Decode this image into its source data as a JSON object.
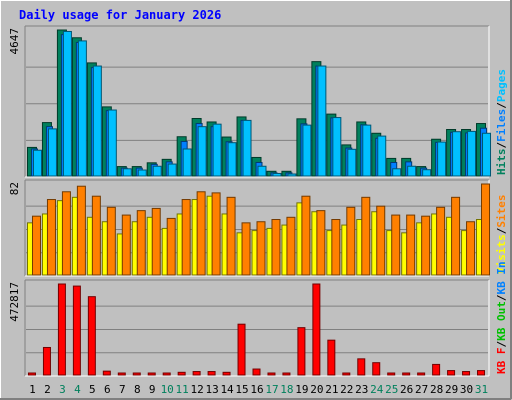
{
  "title": "Daily usage for January 2026",
  "colors": {
    "background": "#c0c0c0",
    "plot": "#c0c0c0",
    "title": "#0000ff",
    "hits": "#00805c",
    "files": "#0080ff",
    "pages": "#00c0ff",
    "visits": "#ffff00",
    "sites": "#ff8000",
    "kbin": "#0080ff",
    "kbout": "#00c000",
    "kbf": "#ff0000",
    "weekend": "#00805c",
    "weekday": "#000000"
  },
  "chart_data": [
    {
      "type": "bar",
      "name": "hits-files-pages",
      "ymax_label": "4647",
      "legend": [
        {
          "label": "Hits",
          "color": "#00805c"
        },
        {
          "label": "Files",
          "color": "#0080ff"
        },
        {
          "label": "Pages",
          "color": "#00c0ff"
        }
      ],
      "categories": [
        "1",
        "2",
        "3",
        "4",
        "5",
        "6",
        "7",
        "8",
        "9",
        "10",
        "11",
        "12",
        "13",
        "14",
        "15",
        "16",
        "17",
        "18",
        "19",
        "20",
        "21",
        "22",
        "23",
        "24",
        "25",
        "26",
        "27",
        "28",
        "29",
        "30",
        "31"
      ],
      "series": [
        {
          "name": "Hits",
          "values": [
            910,
            1700,
            4647,
            4400,
            3600,
            2200,
            300,
            300,
            420,
            530,
            1250,
            1830,
            1720,
            1240,
            1880,
            590,
            150,
            150,
            1820,
            3640,
            1970,
            990,
            1720,
            1360,
            560,
            560,
            300,
            1170,
            1480,
            1480,
            1670
          ]
        },
        {
          "name": "Files",
          "values": [
            860,
            1570,
            4500,
            4250,
            3450,
            2080,
            250,
            250,
            370,
            450,
            1100,
            1670,
            1570,
            1090,
            1770,
            430,
            100,
            100,
            1660,
            3500,
            1850,
            890,
            1630,
            1200,
            430,
            450,
            250,
            1070,
            1390,
            1370,
            1520
          ]
        },
        {
          "name": "Pages",
          "values": [
            820,
            1500,
            4600,
            4300,
            3500,
            2100,
            230,
            190,
            310,
            380,
            860,
            1570,
            1650,
            1060,
            1770,
            310,
            80,
            50,
            1620,
            3500,
            1860,
            850,
            1620,
            1270,
            230,
            310,
            200,
            1080,
            1410,
            1420,
            1360
          ]
        }
      ]
    },
    {
      "type": "bar",
      "name": "visits-sites",
      "ymax_label": "82",
      "legend": [
        {
          "label": "Visits",
          "color": "#ffff00"
        },
        {
          "label": "Sites",
          "color": "#ff8000"
        }
      ],
      "categories": [
        "1",
        "2",
        "3",
        "4",
        "5",
        "6",
        "7",
        "8",
        "9",
        "10",
        "11",
        "12",
        "13",
        "14",
        "15",
        "16",
        "17",
        "18",
        "19",
        "20",
        "21",
        "22",
        "23",
        "24",
        "25",
        "26",
        "27",
        "28",
        "29",
        "30",
        "31"
      ],
      "series": [
        {
          "name": "Visits",
          "values": [
            47,
            55,
            67,
            70,
            52,
            48,
            37,
            48,
            52,
            42,
            55,
            68,
            71,
            55,
            38,
            40,
            42,
            45,
            65,
            57,
            40,
            45,
            50,
            57,
            40,
            38,
            47,
            55,
            52,
            40,
            50
          ]
        },
        {
          "name": "Sites",
          "values": [
            53,
            68,
            75,
            80,
            71,
            61,
            54,
            58,
            60,
            51,
            68,
            75,
            74,
            70,
            47,
            48,
            50,
            52,
            71,
            58,
            50,
            61,
            70,
            62,
            54,
            54,
            53,
            61,
            70,
            48,
            82
          ]
        }
      ]
    },
    {
      "type": "bar",
      "name": "kbytes",
      "ymax_label": "472817",
      "legend": [
        {
          "label": "KB F",
          "color": "#ff0000"
        },
        {
          "label": "KB Out",
          "color": "#00c000"
        },
        {
          "label": "KB In",
          "color": "#0080ff"
        }
      ],
      "categories": [
        "1",
        "2",
        "3",
        "4",
        "5",
        "6",
        "7",
        "8",
        "9",
        "10",
        "11",
        "12",
        "13",
        "14",
        "15",
        "16",
        "17",
        "18",
        "19",
        "20",
        "21",
        "22",
        "23",
        "24",
        "25",
        "26",
        "27",
        "28",
        "29",
        "30",
        "31"
      ],
      "series": [
        {
          "name": "KB F",
          "values": [
            0,
            143000,
            472817,
            462000,
            407000,
            20000,
            9000,
            9000,
            9000,
            9000,
            14000,
            18000,
            18000,
            14000,
            264000,
            31000,
            5000,
            5000,
            246000,
            472817,
            181000,
            5000,
            84000,
            64000,
            9000,
            9000,
            9000,
            55000,
            23000,
            18000,
            23000
          ]
        }
      ]
    }
  ],
  "x_labels": [
    {
      "text": "1",
      "weekend": false
    },
    {
      "text": "2",
      "weekend": false
    },
    {
      "text": "3",
      "weekend": true
    },
    {
      "text": "4",
      "weekend": true
    },
    {
      "text": "5",
      "weekend": false
    },
    {
      "text": "6",
      "weekend": false
    },
    {
      "text": "7",
      "weekend": false
    },
    {
      "text": "8",
      "weekend": false
    },
    {
      "text": "9",
      "weekend": false
    },
    {
      "text": "10",
      "weekend": true
    },
    {
      "text": "11",
      "weekend": true
    },
    {
      "text": "12",
      "weekend": false
    },
    {
      "text": "13",
      "weekend": false
    },
    {
      "text": "14",
      "weekend": false
    },
    {
      "text": "15",
      "weekend": false
    },
    {
      "text": "16",
      "weekend": false
    },
    {
      "text": "17",
      "weekend": true
    },
    {
      "text": "18",
      "weekend": true
    },
    {
      "text": "19",
      "weekend": false
    },
    {
      "text": "20",
      "weekend": false
    },
    {
      "text": "21",
      "weekend": false
    },
    {
      "text": "22",
      "weekend": false
    },
    {
      "text": "23",
      "weekend": false
    },
    {
      "text": "24",
      "weekend": true
    },
    {
      "text": "25",
      "weekend": true
    },
    {
      "text": "26",
      "weekend": false
    },
    {
      "text": "27",
      "weekend": false
    },
    {
      "text": "28",
      "weekend": false
    },
    {
      "text": "29",
      "weekend": false
    },
    {
      "text": "30",
      "weekend": false
    },
    {
      "text": "31",
      "weekend": true
    }
  ]
}
